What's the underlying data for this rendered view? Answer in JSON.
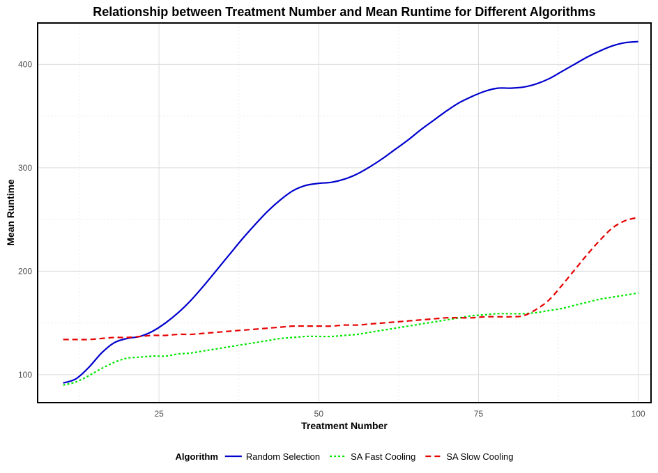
{
  "chart_data": {
    "type": "line",
    "title": "Relationship between Treatment Number and Mean Runtime for Different Algorithms",
    "xlabel": "Treatment Number",
    "ylabel": "Mean Runtime",
    "xlim": [
      6,
      102
    ],
    "ylim": [
      73,
      440
    ],
    "x_ticks": [
      25,
      50,
      75,
      100
    ],
    "y_ticks": [
      100,
      200,
      300,
      400
    ],
    "grid": true,
    "legend": {
      "title": "Algorithm",
      "position": "bottom"
    },
    "series": [
      {
        "name": "Random Selection",
        "color": "#0000cd",
        "dash": "solid",
        "points": [
          [
            10,
            92
          ],
          [
            12,
            96
          ],
          [
            14,
            107
          ],
          [
            16,
            121
          ],
          [
            18,
            131
          ],
          [
            20,
            135
          ],
          [
            22,
            137
          ],
          [
            24,
            142
          ],
          [
            26,
            150
          ],
          [
            28,
            160
          ],
          [
            30,
            172
          ],
          [
            32,
            186
          ],
          [
            34,
            201
          ],
          [
            36,
            216
          ],
          [
            38,
            231
          ],
          [
            40,
            245
          ],
          [
            42,
            258
          ],
          [
            44,
            269
          ],
          [
            46,
            278
          ],
          [
            48,
            283
          ],
          [
            50,
            285
          ],
          [
            52,
            286
          ],
          [
            54,
            289
          ],
          [
            56,
            294
          ],
          [
            58,
            301
          ],
          [
            60,
            309
          ],
          [
            62,
            318
          ],
          [
            64,
            327
          ],
          [
            66,
            337
          ],
          [
            68,
            346
          ],
          [
            70,
            355
          ],
          [
            72,
            363
          ],
          [
            74,
            369
          ],
          [
            76,
            374
          ],
          [
            78,
            377
          ],
          [
            80,
            377
          ],
          [
            82,
            378
          ],
          [
            84,
            381
          ],
          [
            86,
            386
          ],
          [
            88,
            393
          ],
          [
            90,
            400
          ],
          [
            92,
            407
          ],
          [
            94,
            413
          ],
          [
            96,
            418
          ],
          [
            98,
            421
          ],
          [
            100,
            422
          ]
        ]
      },
      {
        "name": "SA Fast Cooling",
        "color": "#00e600",
        "dash": "dotted",
        "points": [
          [
            10,
            90
          ],
          [
            12,
            93
          ],
          [
            14,
            99
          ],
          [
            16,
            106
          ],
          [
            18,
            112
          ],
          [
            20,
            116
          ],
          [
            22,
            117
          ],
          [
            24,
            118
          ],
          [
            26,
            118
          ],
          [
            28,
            120
          ],
          [
            30,
            121
          ],
          [
            32,
            123
          ],
          [
            34,
            125
          ],
          [
            36,
            127
          ],
          [
            38,
            129
          ],
          [
            40,
            131
          ],
          [
            42,
            133
          ],
          [
            44,
            135
          ],
          [
            46,
            136
          ],
          [
            48,
            137
          ],
          [
            50,
            137
          ],
          [
            52,
            137
          ],
          [
            54,
            138
          ],
          [
            56,
            139
          ],
          [
            58,
            141
          ],
          [
            60,
            143
          ],
          [
            62,
            145
          ],
          [
            64,
            147
          ],
          [
            66,
            149
          ],
          [
            68,
            151
          ],
          [
            70,
            153
          ],
          [
            72,
            155
          ],
          [
            74,
            157
          ],
          [
            76,
            158
          ],
          [
            78,
            159
          ],
          [
            80,
            159
          ],
          [
            82,
            159
          ],
          [
            84,
            160
          ],
          [
            86,
            162
          ],
          [
            88,
            164
          ],
          [
            90,
            167
          ],
          [
            92,
            170
          ],
          [
            94,
            173
          ],
          [
            96,
            175
          ],
          [
            98,
            177
          ],
          [
            100,
            179
          ]
        ]
      },
      {
        "name": "SA Slow Cooling",
        "color": "#e60000",
        "dash": "dashed",
        "points": [
          [
            10,
            134
          ],
          [
            12,
            134
          ],
          [
            14,
            134
          ],
          [
            16,
            135
          ],
          [
            18,
            136
          ],
          [
            20,
            136
          ],
          [
            22,
            137
          ],
          [
            24,
            138
          ],
          [
            26,
            138
          ],
          [
            28,
            139
          ],
          [
            30,
            139
          ],
          [
            32,
            140
          ],
          [
            34,
            141
          ],
          [
            36,
            142
          ],
          [
            38,
            143
          ],
          [
            40,
            144
          ],
          [
            42,
            145
          ],
          [
            44,
            146
          ],
          [
            46,
            147
          ],
          [
            48,
            147
          ],
          [
            50,
            147
          ],
          [
            52,
            147
          ],
          [
            54,
            148
          ],
          [
            56,
            148
          ],
          [
            58,
            149
          ],
          [
            60,
            150
          ],
          [
            62,
            151
          ],
          [
            64,
            152
          ],
          [
            66,
            153
          ],
          [
            68,
            154
          ],
          [
            70,
            155
          ],
          [
            72,
            155
          ],
          [
            74,
            155
          ],
          [
            76,
            156
          ],
          [
            78,
            156
          ],
          [
            80,
            156
          ],
          [
            82,
            157
          ],
          [
            84,
            163
          ],
          [
            86,
            172
          ],
          [
            88,
            186
          ],
          [
            90,
            201
          ],
          [
            92,
            216
          ],
          [
            94,
            230
          ],
          [
            96,
            242
          ],
          [
            98,
            249
          ],
          [
            100,
            252
          ]
        ]
      }
    ]
  }
}
